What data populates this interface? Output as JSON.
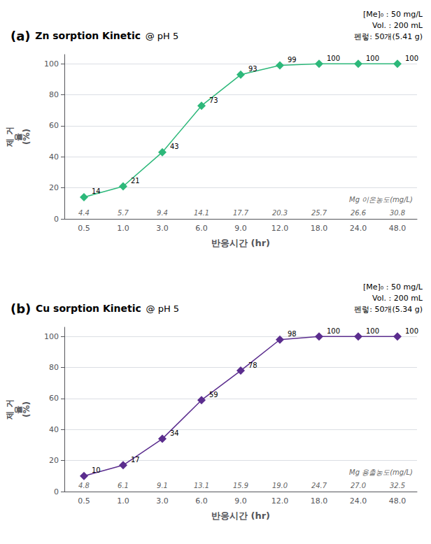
{
  "chart_data": [
    {
      "type": "line",
      "label": "(a)",
      "title": "Zn sorption Kinetic",
      "subtitle": "@ pH 5",
      "info": "[Me]₀ : 50 mg/L\nVol. : 200 mL\n펜렇: 50개(5.41 g)",
      "categories": [
        "0.5",
        "1.0",
        "3.0",
        "6.0",
        "9.0",
        "12.0",
        "18.0",
        "24.0",
        "48.0"
      ],
      "values": [
        14,
        21,
        43,
        73,
        93,
        99,
        100,
        100,
        100
      ],
      "mg_labels": [
        "4.4",
        "5.7",
        "9.4",
        "14.1",
        "17.7",
        "20.3",
        "25.7",
        "26.6",
        "30.8"
      ],
      "mg_label_text": "Mg 이온농도(mg/L)",
      "color": "#2db87a",
      "marker": "diamond",
      "data_labels": true,
      "grid": true,
      "xlabel": "반응시간 (hr)",
      "ylabel": "제 거\n율\n(%)",
      "ylim": [
        0,
        106
      ],
      "yticks": [
        0,
        20,
        40,
        60,
        80,
        100
      ]
    },
    {
      "type": "line",
      "label": "(b)",
      "title": "Cu sorption Kinetic",
      "subtitle": "@ pH 5",
      "info": "[Me]₀ : 50 mg/L\nVol. : 200 mL\n펜렇: 50개(5.34 g)",
      "categories": [
        "0.5",
        "1.0",
        "3.0",
        "6.0",
        "9.0",
        "12.0",
        "18.0",
        "24.0",
        "48.0"
      ],
      "values": [
        10,
        17,
        34,
        59,
        78,
        98,
        100,
        100,
        100
      ],
      "mg_labels": [
        "4.8",
        "6.1",
        "9.1",
        "13.1",
        "15.9",
        "19.0",
        "24.7",
        "27.0",
        "32.5"
      ],
      "mg_label_text": "Mg 용출농도(mg/L)",
      "color": "#5b2d8e",
      "marker": "diamond",
      "data_labels": true,
      "grid": true,
      "xlabel": "반응시간 (hr)",
      "ylabel": "제 거\n율\n(%)",
      "ylim": [
        0,
        106
      ],
      "yticks": [
        0,
        20,
        40,
        60,
        80,
        100
      ]
    }
  ]
}
